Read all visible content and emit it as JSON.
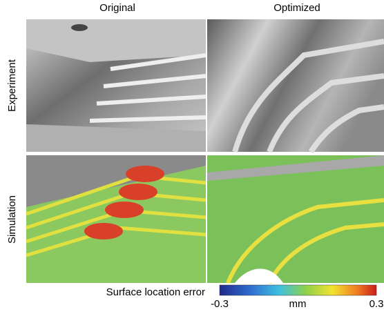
{
  "columns": [
    "Original",
    "Optimized"
  ],
  "rows": [
    "Experiment",
    "Simulation"
  ],
  "colorbar": {
    "label": "Surface location error",
    "min": -0.3,
    "unit": "mm",
    "max": 0.3
  }
}
